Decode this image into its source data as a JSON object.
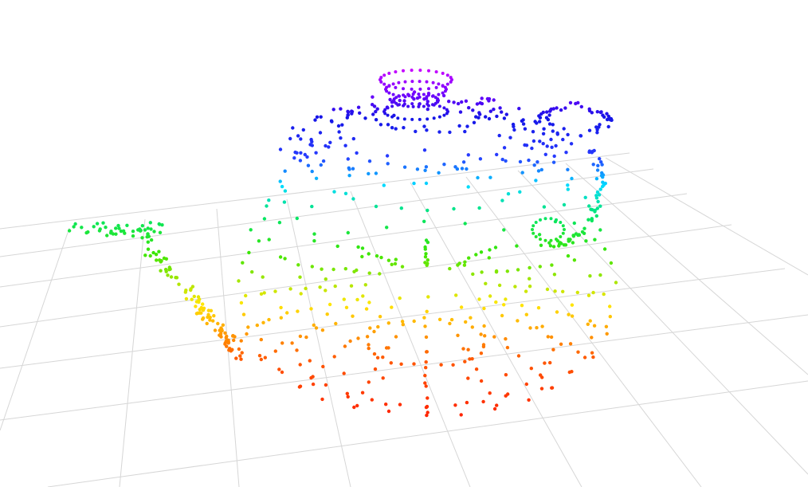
{
  "viewer": {
    "background": "#ffffff",
    "grid_color": "#d6d6d6",
    "model": "teapot",
    "render_mode": "point-cloud",
    "colormap": "jet",
    "colormap_axis": "height",
    "color_low": "#ff2200",
    "color_high": "#cc00ff"
  }
}
